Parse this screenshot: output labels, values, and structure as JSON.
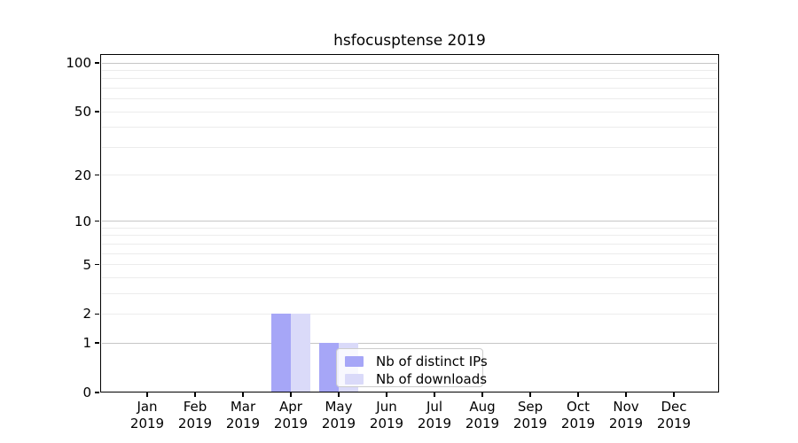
{
  "figure": {
    "title": "hsfocusptense 2019",
    "background_color": "#ffffff"
  },
  "legend": {
    "items": [
      {
        "label": "Nb of distinct IPs",
        "color": "#a6a6f7"
      },
      {
        "label": "Nb of downloads",
        "color": "#dadaf9"
      }
    ],
    "position": "lower center inside plot"
  },
  "chart_data": {
    "type": "bar",
    "title": "hsfocusptense 2019",
    "categories": [
      "Jan 2019",
      "Feb 2019",
      "Mar 2019",
      "Apr 2019",
      "May 2019",
      "Jun 2019",
      "Jul 2019",
      "Aug 2019",
      "Sep 2019",
      "Oct 2019",
      "Nov 2019",
      "Dec 2019"
    ],
    "x_tick_month": [
      "Jan",
      "Feb",
      "Mar",
      "Apr",
      "May",
      "Jun",
      "Jul",
      "Aug",
      "Sep",
      "Oct",
      "Nov",
      "Dec"
    ],
    "x_tick_year": "2019",
    "series": [
      {
        "name": "Nb of distinct IPs",
        "color": "#a6a6f7",
        "values": [
          0,
          0,
          0,
          2,
          1,
          0,
          0,
          0,
          0,
          0,
          0,
          0
        ]
      },
      {
        "name": "Nb of downloads",
        "color": "#dadaf9",
        "values": [
          0,
          0,
          0,
          2,
          1,
          0,
          0,
          0,
          0,
          0,
          0,
          0
        ]
      }
    ],
    "y_axis": {
      "scale": "log1p",
      "range": [
        0,
        100
      ],
      "tick_values": [
        0,
        1,
        2,
        5,
        10,
        20,
        50,
        100
      ],
      "major_gridlines": [
        1,
        10,
        100
      ],
      "minor_gridlines": [
        2,
        3,
        4,
        5,
        6,
        7,
        8,
        9,
        20,
        30,
        40,
        50,
        60,
        70,
        80,
        90
      ]
    },
    "x_axis": {
      "label": "",
      "tick_count": 12
    },
    "grid": "horizontal",
    "legend_position": "lower center inside"
  }
}
